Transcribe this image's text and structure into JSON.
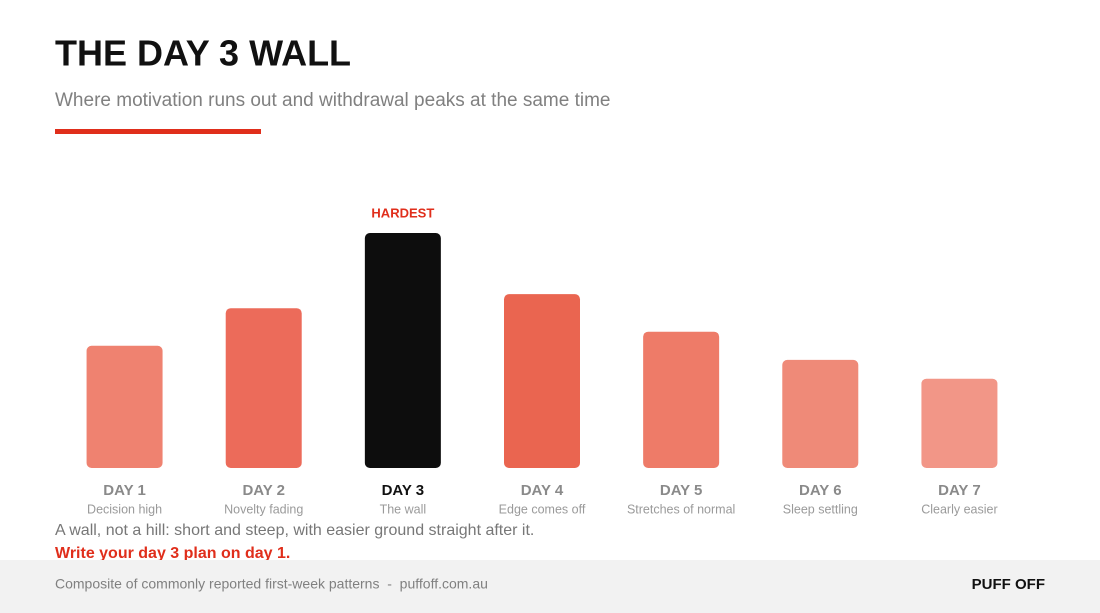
{
  "chart_data": {
    "type": "bar",
    "title": "THE DAY 3 WALL",
    "subtitle": "Where motivation runs out and withdrawal peaks at the same time",
    "categories": [
      "DAY 1",
      "DAY 2",
      "DAY 3",
      "DAY 4",
      "DAY 5",
      "DAY 6",
      "DAY 7"
    ],
    "category_notes": [
      "Decision high",
      "Novelty fading",
      "The wall",
      "Edge comes off",
      "Stretches of normal",
      "Sleep settling",
      "Clearly easier"
    ],
    "values": [
      52,
      68,
      100,
      74,
      58,
      46,
      38
    ],
    "colors": [
      "#ef8270",
      "#ec6b5a",
      "#0d0d0d",
      "#ea6550",
      "#ee7b68",
      "#ef8a78",
      "#f29687"
    ],
    "ylim": [
      0,
      100
    ],
    "annotation": {
      "text": "HARDEST",
      "category": "DAY 3"
    },
    "caption": "A wall, not a hill: short and steep, with easier ground straight after it.",
    "call_to_action": "Write your day 3 plan on day 1.",
    "source": "Composite of commonly reported first-week patterns  -  puffoff.com.au",
    "brand": "PUFF OFF"
  }
}
